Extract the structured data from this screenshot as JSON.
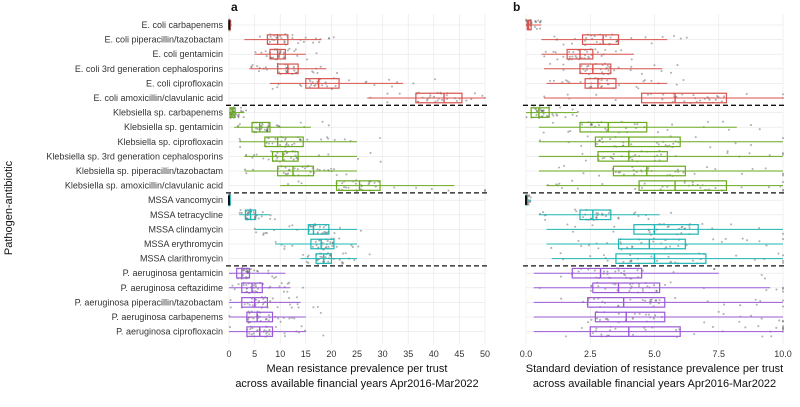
{
  "y_axis_label": "Pathogen-antibiotic",
  "chart_data": [
    {
      "type": "box",
      "panel": "a",
      "xlabel_line1": "Mean resistance prevalence per trust",
      "xlabel_line2": "across available financial years Apr2016-Mar2022",
      "xlim": [
        0,
        50
      ],
      "xticks": [
        0,
        5,
        10,
        15,
        20,
        25,
        30,
        35,
        40,
        45,
        50
      ],
      "grid": true,
      "categories": [
        {
          "label": "E. coli carbapenems",
          "group": "E. coli",
          "q1": 0.02,
          "median": 0.05,
          "q3": 0.08,
          "lo": 0.0,
          "hi": 0.3
        },
        {
          "label": "E. coli piperacillin/tazobactam",
          "group": "E. coli",
          "q1": 7.5,
          "median": 9.5,
          "q3": 11.5,
          "lo": 3,
          "hi": 18
        },
        {
          "label": "E. coli gentamicin",
          "group": "E. coli",
          "q1": 8.0,
          "median": 9.5,
          "q3": 11.0,
          "lo": 5,
          "hi": 15
        },
        {
          "label": "E. coli 3rd generation cephalosporins",
          "group": "E. coli",
          "q1": 9.5,
          "median": 11.5,
          "q3": 13.5,
          "lo": 4,
          "hi": 19
        },
        {
          "label": "E. coli ciprofloxacin",
          "group": "E. coli",
          "q1": 15.0,
          "median": 17.5,
          "q3": 21.5,
          "lo": 8,
          "hi": 34
        },
        {
          "label": "E. coli amoxicillin/clavulanic acid",
          "group": "E. coli",
          "q1": 36.5,
          "median": 42.0,
          "q3": 45.5,
          "lo": 27,
          "hi": 50
        },
        {
          "label": "Klebsiella sp. carbapenems",
          "group": "Klebsiella sp.",
          "q1": 0.2,
          "median": 0.6,
          "q3": 1.2,
          "lo": 0,
          "hi": 3
        },
        {
          "label": "Klebsiella sp. gentamicin",
          "group": "Klebsiella sp.",
          "q1": 4.5,
          "median": 6.0,
          "q3": 8.0,
          "lo": 1,
          "hi": 16
        },
        {
          "label": "Klebsiella sp. ciprofloxacin",
          "group": "Klebsiella sp.",
          "q1": 7.0,
          "median": 9.5,
          "q3": 14.5,
          "lo": 2,
          "hi": 25
        },
        {
          "label": "Klebsiella sp. 3rd generation cephalosporins",
          "group": "Klebsiella sp.",
          "q1": 8.5,
          "median": 10.5,
          "q3": 13.5,
          "lo": 3,
          "hi": 25
        },
        {
          "label": "Klebsiella sp. piperacillin/tazobactam",
          "group": "Klebsiella sp.",
          "q1": 9.5,
          "median": 12.5,
          "q3": 16.5,
          "lo": 3,
          "hi": 25
        },
        {
          "label": "Klebsiella sp. amoxicillin/clavulanic acid",
          "group": "Klebsiella sp.",
          "q1": 21.0,
          "median": 25.5,
          "q3": 29.5,
          "lo": 10,
          "hi": 44
        },
        {
          "label": "MSSA vancomycin",
          "group": "MSSA",
          "q1": 0.0,
          "median": 0.0,
          "q3": 0.05,
          "lo": 0,
          "hi": 0.2
        },
        {
          "label": "MSSA tetracycline",
          "group": "MSSA",
          "q1": 3.2,
          "median": 4.2,
          "q3": 5.2,
          "lo": 2,
          "hi": 8
        },
        {
          "label": "MSSA clindamycin",
          "group": "MSSA",
          "q1": 15.5,
          "median": 16.5,
          "q3": 19.5,
          "lo": 5,
          "hi": 25
        },
        {
          "label": "MSSA erythromycin",
          "group": "MSSA",
          "q1": 16.0,
          "median": 18.0,
          "q3": 20.5,
          "lo": 9,
          "hi": 25
        },
        {
          "label": "MSSA clarithromycin",
          "group": "MSSA",
          "q1": 17.0,
          "median": 18.5,
          "q3": 20.0,
          "lo": 14,
          "hi": 25
        },
        {
          "label": "P. aeruginosa gentamicin",
          "group": "P. aeruginosa",
          "q1": 1.5,
          "median": 2.5,
          "q3": 4.0,
          "lo": 0,
          "hi": 11
        },
        {
          "label": "P. aeruginosa ceftazidime",
          "group": "P. aeruginosa",
          "q1": 2.5,
          "median": 4.5,
          "q3": 6.5,
          "lo": 0,
          "hi": 12
        },
        {
          "label": "P. aeruginosa piperacillin/tazobactam",
          "group": "P. aeruginosa",
          "q1": 2.5,
          "median": 5.0,
          "q3": 7.5,
          "lo": 0,
          "hi": 14
        },
        {
          "label": "P. aeruginosa carbapenems",
          "group": "P. aeruginosa",
          "q1": 3.5,
          "median": 5.5,
          "q3": 8.5,
          "lo": 0,
          "hi": 15
        },
        {
          "label": "P. aeruginosa ciprofloxacin",
          "group": "P. aeruginosa",
          "q1": 3.5,
          "median": 6.0,
          "q3": 8.5,
          "lo": 0,
          "hi": 15
        }
      ]
    },
    {
      "type": "box",
      "panel": "b",
      "xlabel_line1": "Standard deviation of resistance prevalence per trust",
      "xlabel_line2": "across available financial years Apr2016-Mar2022",
      "xlim": [
        0,
        10
      ],
      "xticks": [
        0.0,
        2.5,
        5.0,
        7.5,
        10.0
      ],
      "xtick_labels": [
        "0.0",
        "2.5",
        "5.0",
        "7.5",
        "10.0"
      ],
      "grid": true,
      "categories": [
        {
          "label": "E. coli carbapenems",
          "q1": 0.05,
          "median": 0.1,
          "q3": 0.2,
          "lo": 0,
          "hi": 0.6
        },
        {
          "label": "E. coli piperacillin/tazobactam",
          "q1": 2.2,
          "median": 3.0,
          "q3": 3.6,
          "lo": 0.6,
          "hi": 5.5
        },
        {
          "label": "E. coli gentamicin",
          "q1": 1.6,
          "median": 2.1,
          "q3": 2.6,
          "lo": 0.6,
          "hi": 4.2
        },
        {
          "label": "E. coli 3rd generation cephalosporins",
          "q1": 2.1,
          "median": 2.6,
          "q3": 3.3,
          "lo": 0.7,
          "hi": 5.3
        },
        {
          "label": "E. coli ciprofloxacin",
          "q1": 2.3,
          "median": 2.8,
          "q3": 3.5,
          "lo": 0.8,
          "hi": 5.5
        },
        {
          "label": "E. coli amoxicillin/clavulanic acid",
          "q1": 4.5,
          "median": 5.8,
          "q3": 7.8,
          "lo": 0.7,
          "hi": 10
        },
        {
          "label": "Klebsiella sp. carbapenems",
          "q1": 0.2,
          "median": 0.5,
          "q3": 0.9,
          "lo": 0,
          "hi": 2
        },
        {
          "label": "Klebsiella sp. gentamicin",
          "q1": 2.1,
          "median": 3.2,
          "q3": 4.7,
          "lo": 0.5,
          "hi": 8.2
        },
        {
          "label": "Klebsiella sp. ciprofloxacin",
          "q1": 2.7,
          "median": 4.0,
          "q3": 6.0,
          "lo": 0.5,
          "hi": 10
        },
        {
          "label": "Klebsiella sp. 3rd generation cephalosporins",
          "q1": 2.8,
          "median": 4.0,
          "q3": 5.5,
          "lo": 0.5,
          "hi": 10
        },
        {
          "label": "Klebsiella sp. piperacillin/tazobactam",
          "q1": 3.4,
          "median": 4.7,
          "q3": 6.2,
          "lo": 0.5,
          "hi": 10
        },
        {
          "label": "Klebsiella sp. amoxicillin/clavulanic acid",
          "q1": 4.4,
          "median": 5.8,
          "q3": 7.8,
          "lo": 0.8,
          "hi": 10
        },
        {
          "label": "MSSA vancomycin",
          "q1": 0.0,
          "median": 0.0,
          "q3": 0.05,
          "lo": 0,
          "hi": 0.2
        },
        {
          "label": "MSSA tetracycline",
          "q1": 2.1,
          "median": 2.6,
          "q3": 3.3,
          "lo": 0.5,
          "hi": 5.2
        },
        {
          "label": "MSSA clindamycin",
          "q1": 4.2,
          "median": 5.0,
          "q3": 6.7,
          "lo": 0.8,
          "hi": 10
        },
        {
          "label": "MSSA erythromycin",
          "q1": 3.6,
          "median": 4.8,
          "q3": 6.2,
          "lo": 0.8,
          "hi": 10
        },
        {
          "label": "MSSA clarithromycin",
          "q1": 3.5,
          "median": 5.0,
          "q3": 7.0,
          "lo": 1.0,
          "hi": 10
        },
        {
          "label": "P. aeruginosa gentamicin",
          "q1": 1.8,
          "median": 2.9,
          "q3": 4.5,
          "lo": 0.3,
          "hi": 7.5
        },
        {
          "label": "P. aeruginosa ceftazidime",
          "q1": 2.6,
          "median": 3.6,
          "q3": 5.2,
          "lo": 0.3,
          "hi": 9.5
        },
        {
          "label": "P. aeruginosa piperacillin/tazobactam",
          "q1": 2.4,
          "median": 3.8,
          "q3": 5.4,
          "lo": 0.3,
          "hi": 10
        },
        {
          "label": "P. aeruginosa carbapenems",
          "q1": 2.7,
          "median": 3.9,
          "q3": 5.4,
          "lo": 0.3,
          "hi": 10
        },
        {
          "label": "P. aeruginosa ciprofloxacin",
          "q1": 2.5,
          "median": 4.0,
          "q3": 6.0,
          "lo": 0.3,
          "hi": 10
        }
      ]
    }
  ],
  "group_colors": {
    "E. coli": "#d9534f",
    "Klebsiella sp.": "#6aaa1e",
    "MSSA": "#1fb5b5",
    "P. aeruginosa": "#9b59d6"
  }
}
